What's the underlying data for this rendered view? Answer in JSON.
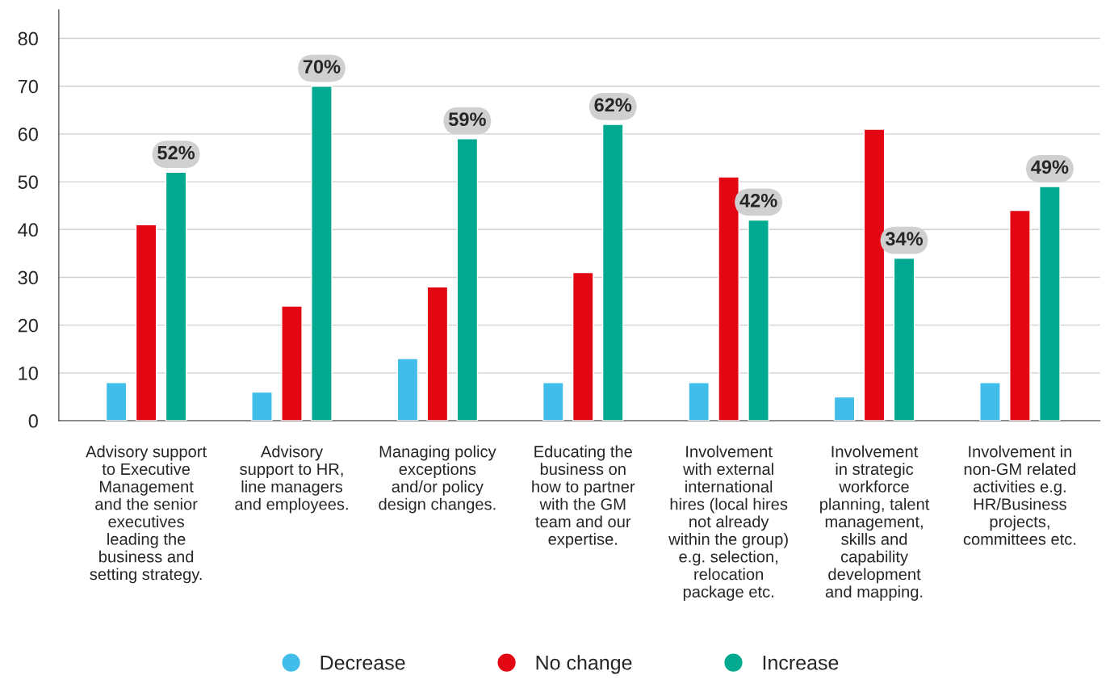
{
  "chart_data": {
    "type": "bar",
    "categories": [
      "Advisory support\nto Executive\nManagement\nand the senior\nexecutives\nleading the\nbusiness and\nsetting strategy.",
      "Advisory\nsupport to HR,\nline managers\nand employees.",
      "Managing policy\nexceptions\nand/or policy\ndesign changes.",
      "Educating the\nbusiness on\nhow to partner\nwith the GM\nteam and our\nexpertise.",
      "Involvement\nwith external\ninternational\nhires (local hires\nnot already\nwithin the group)\ne.g. selection,\nrelocation\npackage etc.",
      "Involvement\nin strategic\nworkforce\nplanning, talent\nmanagement,\nskills and\ncapability\ndevelopment\nand mapping.",
      "Involvement in\nnon-GM related\nactivities e.g.\nHR/Business\nprojects,\ncommittees etc."
    ],
    "series": [
      {
        "name": "Decrease",
        "color": "#41bde9",
        "values": [
          8,
          6,
          13,
          8,
          8,
          5,
          8
        ]
      },
      {
        "name": "No change",
        "color": "#e30613",
        "values": [
          41,
          24,
          28,
          31,
          51,
          61,
          44
        ]
      },
      {
        "name": "Increase",
        "color": "#00a98f",
        "values": [
          52,
          70,
          59,
          62,
          42,
          34,
          49
        ],
        "value_labels": [
          "52%",
          "70%",
          "59%",
          "62%",
          "42%",
          "34%",
          "49%"
        ]
      }
    ],
    "ylim": [
      0,
      86
    ],
    "yticks": [
      0,
      10,
      20,
      30,
      40,
      50,
      60,
      70,
      80
    ],
    "grid": "y",
    "legend": "bottom"
  }
}
